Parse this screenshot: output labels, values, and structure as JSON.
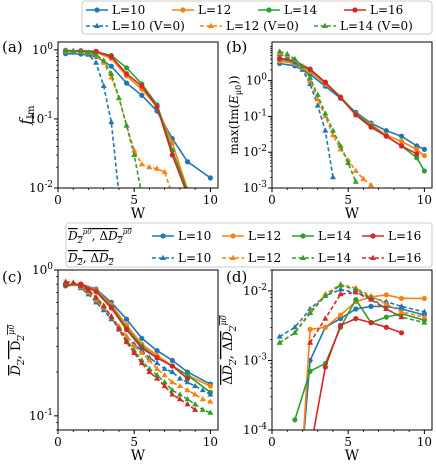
{
  "colors": {
    "L10": "#1f77b4",
    "L12": "#ff7f0e",
    "L14": "#2ca02c",
    "L16": "#d62728"
  },
  "legend_top": {
    "solid": [
      "L=10",
      "L=12",
      "L=14",
      "L=16"
    ],
    "dashed": [
      "L=10 (V=0)",
      "L=12 (V=0)",
      "L=14 (V=0)"
    ]
  },
  "legend_mid": {
    "solid_prefix": "D2mu, ΔD2mu",
    "dashed_prefix": "D2, ΔD2",
    "solid": [
      "L=10",
      "L=12",
      "L=14",
      "L=16"
    ],
    "dashed": [
      "L=10",
      "L=12",
      "L=14",
      "L=16"
    ]
  },
  "chart_data": [
    {
      "panel": "(a)",
      "type": "line",
      "xlabel": "W",
      "ylabel": "f_Im",
      "yscale": "log",
      "xlim": [
        0,
        10.5
      ],
      "ylim": [
        0.01,
        1.3
      ],
      "xticks": [
        0,
        5,
        10
      ],
      "yticks": [
        1,
        0.1,
        0.01
      ],
      "ytick_labels": [
        "10^0",
        "10^-1",
        "10^-2"
      ],
      "series": [
        {
          "name": "L=10",
          "color": "L10",
          "style": "solid",
          "x": [
            0.5,
            1.5,
            2.5,
            3.5,
            4.5,
            5.5,
            6.5,
            7.5,
            8.5,
            10
          ],
          "y": [
            0.88,
            0.87,
            0.8,
            0.58,
            0.33,
            0.22,
            0.13,
            0.052,
            0.024,
            0.014
          ]
        },
        {
          "name": "L=12",
          "color": "L12",
          "style": "solid",
          "x": [
            0.5,
            1.5,
            2.5,
            3.5,
            4.5,
            5.5,
            6.5,
            7.5,
            8.5
          ],
          "y": [
            0.95,
            0.94,
            0.92,
            0.75,
            0.42,
            0.27,
            0.15,
            0.045,
            0.0095
          ]
        },
        {
          "name": "L=14",
          "color": "L14",
          "style": "solid",
          "x": [
            0.5,
            1.5,
            2.5,
            3.5,
            4.5,
            5.5,
            6.5,
            7.5,
            8.5
          ],
          "y": [
            0.97,
            0.96,
            0.93,
            0.83,
            0.55,
            0.32,
            0.16,
            0.035,
            0.009
          ]
        },
        {
          "name": "L=16",
          "color": "L16",
          "style": "solid",
          "x": [
            0.5,
            1.5,
            2.5,
            3.5,
            4.5,
            5.5,
            6.5,
            7.5,
            8.5
          ],
          "y": [
            0.98,
            0.97,
            0.95,
            0.8,
            0.45,
            0.3,
            0.15,
            0.03,
            0.008
          ]
        },
        {
          "name": "L=10 (V=0)",
          "color": "L10",
          "style": "dashed",
          "x": [
            0.5,
            1,
            1.5,
            2,
            2.5,
            3,
            3.5,
            4
          ],
          "y": [
            0.97,
            0.96,
            0.93,
            0.85,
            0.65,
            0.3,
            0.09,
            0.008
          ]
        },
        {
          "name": "L=12 (V=0)",
          "color": "L12",
          "style": "dashed",
          "x": [
            0.5,
            1,
            1.5,
            2,
            2.5,
            3,
            3.5,
            4,
            4.5,
            5,
            5.5,
            6,
            6.5,
            7,
            7.5
          ],
          "y": [
            0.97,
            0.96,
            0.94,
            0.9,
            0.82,
            0.65,
            0.4,
            0.2,
            0.08,
            0.035,
            0.022,
            0.02,
            0.019,
            0.017,
            0.008
          ]
        },
        {
          "name": "L=14 (V=0)",
          "color": "L14",
          "style": "dashed",
          "x": [
            0.5,
            1,
            1.5,
            2,
            2.5,
            3,
            3.5,
            4,
            4.5,
            5,
            5.5
          ],
          "y": [
            0.98,
            0.97,
            0.95,
            0.92,
            0.85,
            0.7,
            0.45,
            0.2,
            0.08,
            0.03,
            0.008
          ]
        }
      ]
    },
    {
      "panel": "(b)",
      "type": "line",
      "xlabel": "W",
      "ylabel": "max(Im(E_μ0))",
      "yscale": "log",
      "xlim": [
        0,
        10.5
      ],
      "ylim": [
        0.001,
        12
      ],
      "xticks": [
        0,
        5,
        10
      ],
      "yticks": [
        1,
        0.1,
        0.01,
        0.001
      ],
      "ytick_labels": [
        "10^0",
        "10^-1",
        "10^-2",
        "10^-3"
      ],
      "series": [
        {
          "name": "L=10",
          "color": "L10",
          "style": "solid",
          "x": [
            0.5,
            1.5,
            2.5,
            3.5,
            4.5,
            5.5,
            6.5,
            7.5,
            8.5,
            9.5,
            10
          ],
          "y": [
            3.0,
            2.6,
            1.5,
            0.7,
            0.32,
            0.13,
            0.065,
            0.04,
            0.028,
            0.015,
            0.012
          ]
        },
        {
          "name": "L=12",
          "color": "L12",
          "style": "solid",
          "x": [
            0.5,
            1.5,
            2.5,
            3.5,
            4.5,
            5.5,
            6.5,
            7.5,
            8.5,
            9.5,
            10
          ],
          "y": [
            3.5,
            3.0,
            1.8,
            0.8,
            0.35,
            0.12,
            0.06,
            0.03,
            0.02,
            0.012,
            0.008
          ]
        },
        {
          "name": "L=14",
          "color": "L14",
          "style": "solid",
          "x": [
            0.5,
            1.5,
            2.5,
            3.5,
            4.5,
            5.5,
            6.5,
            7.5,
            8.5,
            9.5,
            10
          ],
          "y": [
            4.0,
            3.3,
            2.0,
            0.9,
            0.35,
            0.12,
            0.055,
            0.028,
            0.015,
            0.007,
            0.003
          ]
        },
        {
          "name": "L=16",
          "color": "L16",
          "style": "solid",
          "x": [
            0.5,
            1.5,
            2.5,
            3.5,
            4.5,
            5.5,
            6.5,
            7.5,
            8.5,
            9.5
          ],
          "y": [
            4.2,
            3.5,
            2.1,
            0.9,
            0.33,
            0.11,
            0.05,
            0.028,
            0.015,
            0.009
          ]
        },
        {
          "name": "L=10 (V=0)",
          "color": "L10",
          "style": "dashed",
          "x": [
            0.5,
            1,
            1.5,
            2,
            2.5,
            3,
            3.5,
            4
          ],
          "y": [
            5.5,
            4.5,
            3.5,
            2.0,
            0.8,
            0.2,
            0.04,
            0.002
          ]
        },
        {
          "name": "L=12 (V=0)",
          "color": "L12",
          "style": "dashed",
          "x": [
            0.5,
            1,
            1.5,
            2,
            2.5,
            3,
            3.5,
            4,
            4.5,
            5,
            5.5,
            6,
            6.5
          ],
          "y": [
            5.8,
            5.0,
            3.8,
            2.3,
            1.0,
            0.3,
            0.1,
            0.03,
            0.012,
            0.006,
            0.003,
            0.0018,
            0.0012
          ]
        },
        {
          "name": "L=14 (V=0)",
          "color": "L14",
          "style": "dashed",
          "x": [
            0.5,
            1,
            1.5,
            2,
            2.5,
            3,
            3.5,
            4,
            4.5,
            5,
            5.5
          ],
          "y": [
            6.5,
            5.5,
            4.0,
            2.5,
            1.2,
            0.4,
            0.12,
            0.04,
            0.015,
            0.005,
            0.0015
          ]
        }
      ]
    },
    {
      "panel": "(c)",
      "type": "line",
      "xlabel": "W",
      "ylabel": "D2, D2mu",
      "yscale": "log",
      "xlim": [
        0,
        10.5
      ],
      "ylim": [
        0.08,
        1.0
      ],
      "xticks": [
        0,
        5,
        10
      ],
      "yticks": [
        1,
        0.1
      ],
      "ytick_labels": [
        "10^0",
        "10^-1"
      ],
      "series": [
        {
          "name": "L=10",
          "color": "L10",
          "style": "solid",
          "x": [
            0.5,
            1.5,
            2.5,
            3.5,
            4.5,
            5.5,
            6.5,
            7.5,
            8.5,
            10
          ],
          "y": [
            0.78,
            0.8,
            0.74,
            0.6,
            0.46,
            0.34,
            0.28,
            0.24,
            0.2,
            0.165
          ]
        },
        {
          "name": "L=12",
          "color": "L12",
          "style": "solid",
          "x": [
            0.5,
            1.5,
            2.5,
            3.5,
            4.5,
            5.5,
            6.5,
            7.5,
            8.5,
            10
          ],
          "y": [
            0.78,
            0.8,
            0.73,
            0.58,
            0.42,
            0.31,
            0.26,
            0.22,
            0.19,
            0.16
          ]
        },
        {
          "name": "L=14",
          "color": "L14",
          "style": "solid",
          "x": [
            0.5,
            1.5,
            2.5,
            3.5,
            4.5,
            5.5,
            6.5,
            7.5,
            8.5,
            10
          ],
          "y": [
            0.78,
            0.79,
            0.72,
            0.56,
            0.4,
            0.3,
            0.25,
            0.22,
            0.19,
            0.145
          ]
        },
        {
          "name": "L=16",
          "color": "L16",
          "style": "solid",
          "x": [
            0.5,
            1.5,
            2.5,
            3.5,
            4.5,
            5.5,
            6.5,
            7.5,
            8.5
          ],
          "y": [
            0.79,
            0.8,
            0.71,
            0.55,
            0.39,
            0.29,
            0.25,
            0.22,
            0.18
          ]
        },
        {
          "name": "L=10",
          "color": "L10",
          "style": "dashed",
          "x": [
            0.5,
            1,
            1.5,
            2,
            2.5,
            3,
            3.5,
            4,
            4.5,
            5,
            5.5,
            6,
            6.5,
            7,
            7.5,
            8,
            8.5,
            9,
            9.5,
            10
          ],
          "y": [
            0.82,
            0.8,
            0.75,
            0.68,
            0.6,
            0.53,
            0.46,
            0.4,
            0.35,
            0.31,
            0.28,
            0.25,
            0.23,
            0.21,
            0.2,
            0.18,
            0.17,
            0.16,
            0.15,
            0.14
          ]
        },
        {
          "name": "L=12",
          "color": "L12",
          "style": "dashed",
          "x": [
            0.5,
            1,
            1.5,
            2,
            2.5,
            3,
            3.5,
            4,
            4.5,
            5,
            5.5,
            6,
            6.5,
            7,
            7.5,
            8,
            8.5,
            9,
            9.5,
            10
          ],
          "y": [
            0.82,
            0.8,
            0.76,
            0.7,
            0.62,
            0.55,
            0.48,
            0.41,
            0.35,
            0.3,
            0.27,
            0.24,
            0.21,
            0.19,
            0.17,
            0.16,
            0.15,
            0.14,
            0.13,
            0.125
          ]
        },
        {
          "name": "L=14",
          "color": "L14",
          "style": "dashed",
          "x": [
            0.5,
            1,
            1.5,
            2,
            2.5,
            3,
            3.5,
            4,
            4.5,
            5,
            5.5,
            6,
            6.5,
            7,
            7.5,
            8,
            8.5,
            9,
            9.5,
            10
          ],
          "y": [
            0.82,
            0.81,
            0.77,
            0.72,
            0.64,
            0.56,
            0.48,
            0.4,
            0.33,
            0.28,
            0.24,
            0.21,
            0.19,
            0.17,
            0.15,
            0.14,
            0.13,
            0.12,
            0.11,
            0.105
          ]
        },
        {
          "name": "L=16",
          "color": "L16",
          "style": "dashed",
          "x": [
            0.5,
            1,
            1.5,
            2,
            2.5,
            3,
            3.5,
            4,
            4.5,
            5,
            5.5,
            6,
            6.5,
            7,
            7.5,
            8,
            8.5,
            9
          ],
          "y": [
            0.83,
            0.82,
            0.78,
            0.73,
            0.65,
            0.57,
            0.48,
            0.39,
            0.32,
            0.27,
            0.23,
            0.2,
            0.18,
            0.16,
            0.14,
            0.13,
            0.12,
            0.11
          ]
        }
      ]
    },
    {
      "panel": "(d)",
      "type": "line",
      "xlabel": "W",
      "ylabel": "ΔD2, ΔD2mu",
      "yscale": "log",
      "xlim": [
        0,
        10.5
      ],
      "ylim": [
        0.0001,
        0.02
      ],
      "xticks": [
        0,
        5,
        10
      ],
      "yticks": [
        0.01,
        0.001,
        0.0001
      ],
      "ytick_labels": [
        "10^-2",
        "10^-3",
        "10^-4"
      ],
      "series": [
        {
          "name": "L=10",
          "color": "L10",
          "style": "solid",
          "x": [
            2,
            2.5,
            3.5,
            4.5,
            5.5,
            6.5,
            7.5,
            8.5,
            10
          ],
          "y": [
            5e-05,
            0.001,
            0.003,
            0.004,
            0.0055,
            0.006,
            0.006,
            0.0055,
            0.0045
          ]
        },
        {
          "name": "L=12",
          "color": "L12",
          "style": "solid",
          "x": [
            2,
            2.5,
            3.5,
            4.5,
            5.5,
            6.5,
            7.5,
            8.5,
            10
          ],
          "y": [
            5e-05,
            0.0028,
            0.003,
            0.0045,
            0.007,
            0.0082,
            0.0088,
            0.0078,
            0.0078
          ]
        },
        {
          "name": "L=14",
          "color": "L14",
          "style": "solid",
          "x": [
            1.5,
            2.5,
            3.5,
            4.5,
            5.5,
            6.5,
            7.5,
            8.5,
            10
          ],
          "y": [
            0.00014,
            0.0007,
            0.0009,
            0.003,
            0.0075,
            0.0035,
            0.0042,
            0.0047,
            0.0038
          ]
        },
        {
          "name": "L=16",
          "color": "L16",
          "style": "solid",
          "x": [
            2.5,
            3.5,
            4.5,
            5.5,
            6.5,
            7.5,
            8.5
          ],
          "y": [
            5e-05,
            0.0008,
            0.0032,
            0.004,
            0.0035,
            0.003,
            0.0025
          ]
        },
        {
          "name": "L=10",
          "color": "L10",
          "style": "dashed",
          "x": [
            0.5,
            1.5,
            2.5,
            3.5,
            4.5,
            5.5,
            6.5,
            7.5,
            8.5,
            10
          ],
          "y": [
            0.0022,
            0.003,
            0.0055,
            0.0085,
            0.0105,
            0.0095,
            0.008,
            0.007,
            0.006,
            0.005
          ]
        },
        {
          "name": "L=12",
          "color": "L12",
          "style": "dashed",
          "x": [
            0.5,
            1.5,
            2.5,
            3.5,
            4.5,
            5.5,
            6.5,
            7.5,
            8.5,
            10
          ],
          "y": [
            0.0018,
            0.0025,
            0.005,
            0.009,
            0.0125,
            0.011,
            0.0085,
            0.0065,
            0.005,
            0.0042
          ]
        },
        {
          "name": "L=14",
          "color": "L14",
          "style": "dashed",
          "x": [
            0.5,
            1.5,
            2.5,
            3.5,
            4.5,
            5.5,
            6.5,
            7.5,
            8.5,
            10
          ],
          "y": [
            0.0018,
            0.0025,
            0.0048,
            0.0085,
            0.012,
            0.0105,
            0.008,
            0.0055,
            0.0042,
            0.0035
          ]
        },
        {
          "name": "L=16",
          "color": "L16",
          "style": "dashed",
          "x": [
            2.5,
            3.5,
            4.5,
            5.5,
            6.5,
            7.5,
            8.5
          ],
          "y": [
            0.0018,
            0.004,
            0.009,
            0.0095,
            0.0075,
            0.0055,
            0.0042
          ]
        }
      ]
    }
  ]
}
